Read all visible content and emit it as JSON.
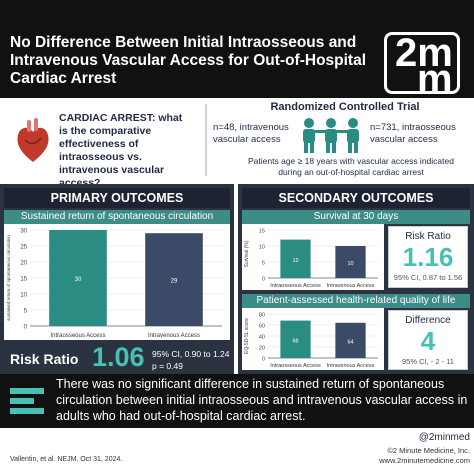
{
  "header": {
    "title": "No Difference Between Initial Intraosseous and Intravenous Vascular Access for Out-of-Hospital Cardiac Arrest",
    "logo_line1": "2m",
    "logo_line2": "m"
  },
  "question": {
    "text": "CARDIAC ARREST: what is the comparative effectiveness of intraosseous vs. intravenous vascular access?",
    "icon": "heart-icon"
  },
  "trial": {
    "design": "Randomized Controlled Trial",
    "arm_intravenous": "n=48, intravenous vascular access",
    "arm_intraosseous": "n=731, intraosseous vascular access",
    "criteria": "Patients age ≥ 18 years with vascular access indicated during an out-of-hospital cardiac arrest",
    "icon": "people-icon"
  },
  "primary": {
    "heading": "PRIMARY OUTCOMES",
    "chart_title": "Sustained return of spontaneous circulation",
    "risk_label": "Risk Ratio",
    "risk_value": "1.06",
    "ci_line1": "95% CI, 0.90 to 1.24",
    "ci_line2": "p = 0.49"
  },
  "secondary": {
    "heading": "SECONDARY OUTCOMES",
    "survival_title": "Survival at 30 days",
    "survival_stat_label": "Risk Ratio",
    "survival_stat_value": "1.16",
    "survival_stat_ci": "95% CI, 0.87 to 1.56",
    "qol_title": "Patient-assessed health-related quality of life",
    "qol_stat_label": "Difference",
    "qol_stat_value": "4",
    "qol_stat_ci": "95% CI, - 2 - 11"
  },
  "colors": {
    "accent": "#47c0b6",
    "bar_intraosseous": "#2b8c84",
    "bar_intravenous": "#3b4a66",
    "panel": "#2b3240"
  },
  "chart_data": [
    {
      "type": "bar",
      "title": "Sustained return of spontaneous circulation",
      "ylabel": "sustained return of spontaneous circulation",
      "categories": [
        "Intraosseous Access",
        "Intravenous Access"
      ],
      "values": [
        30,
        29
      ],
      "ylim": [
        0,
        30
      ],
      "yticks": [
        0,
        5,
        10,
        15,
        20,
        25,
        30
      ],
      "grid": true
    },
    {
      "type": "bar",
      "title": "Survival at 30 days",
      "ylabel": "Survival (%)",
      "categories": [
        "Intraosseous Access",
        "Intravenous Access"
      ],
      "values": [
        12,
        10
      ],
      "ylim": [
        0,
        15
      ],
      "yticks": [
        0,
        5,
        10,
        15
      ],
      "grid": true
    },
    {
      "type": "bar",
      "title": "Patient-assessed health-related quality of life",
      "ylabel": "EQ-5D-5L score",
      "categories": [
        "Intraosseous Access",
        "Intravenous Access"
      ],
      "values": [
        68,
        64
      ],
      "ylim": [
        0,
        80
      ],
      "yticks": [
        0,
        20,
        40,
        60,
        80
      ],
      "grid": true
    }
  ],
  "conclusion": {
    "text": "There was no significant difference in sustained return of spontaneous circulation between initial intraosseous and intravenous vascular access in adults who had out-of-hospital cardiac arrest.",
    "icon": "summary-bars-icon"
  },
  "footer": {
    "citation": "Vallentin, et al. NEJM. Oct 31, 2024.",
    "handle": "@2minmed",
    "copyright": "©2 Minute Medicine, Inc.",
    "website": "www.2minutemedicine.com"
  }
}
